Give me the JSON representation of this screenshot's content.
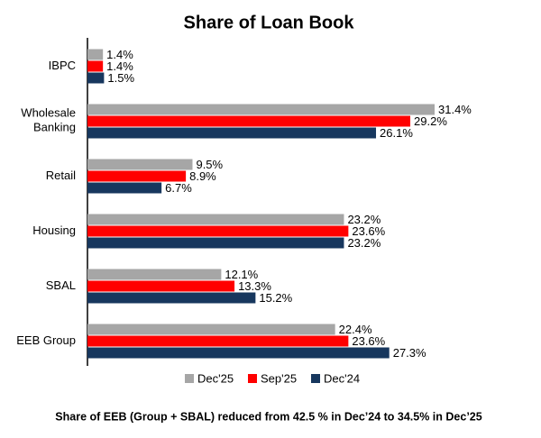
{
  "chart_data": {
    "type": "hbar",
    "title": "Share of Loan Book",
    "categories": [
      "IBPC",
      "Wholesale Banking",
      "Retail",
      "Housing",
      "SBAL",
      "EEB Group"
    ],
    "series": [
      {
        "name": "Dec'25",
        "color": "#a6a6a6",
        "values": [
          1.4,
          31.4,
          9.5,
          23.2,
          12.1,
          22.4
        ],
        "value_labels": [
          "1.4%",
          "31.4%",
          "9.5%",
          "23.2%",
          "12.1%",
          "22.4%"
        ]
      },
      {
        "name": "Sep'25",
        "color": "#ff0000",
        "values": [
          1.4,
          29.2,
          8.9,
          23.6,
          13.3,
          23.6
        ],
        "value_labels": [
          "1.4%",
          "29.2%",
          "8.9%",
          "23.6%",
          "13.3%",
          "23.6%"
        ]
      },
      {
        "name": "Dec'24",
        "color": "#17375e",
        "values": [
          1.5,
          26.1,
          6.7,
          23.2,
          15.2,
          27.3
        ],
        "value_labels": [
          "1.5%",
          "26.1%",
          "6.7%",
          "23.2%",
          "15.2%",
          "27.3%"
        ]
      }
    ],
    "legend": "bottom",
    "footnote": "Share of EEB (Group + SBAL) reduced from 42.5 % in Dec’24 to 34.5% in Dec’25"
  }
}
